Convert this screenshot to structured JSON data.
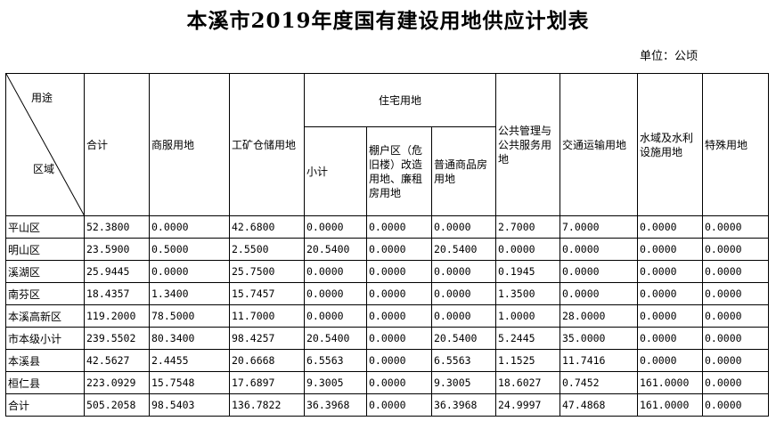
{
  "title": "本溪市2019年度国有建设用地供应计划表",
  "unit_label": "单位：公顷",
  "header": {
    "use_label": "用途",
    "region_label": "区域",
    "total": "合计",
    "commercial": "商服用地",
    "industrial": "工矿仓储用地",
    "residential": "住宅用地",
    "res_subtotal": "小计",
    "res_shanty": "棚户区（危旧楼）改造用地、廉租房用地",
    "res_ordinary": "普通商品房用地",
    "public": "公共管理与公共服务用地",
    "transport": "交通运输用地",
    "water": "水域及水利设施用地",
    "special": "特殊用地"
  },
  "rows": [
    {
      "region": "平山区",
      "v": [
        "52.3800",
        "0.0000",
        "42.6800",
        "0.0000",
        "0.0000",
        "0.0000",
        "2.7000",
        "7.0000",
        "0.0000",
        "0.0000"
      ]
    },
    {
      "region": "明山区",
      "v": [
        "23.5900",
        "0.5000",
        "2.5500",
        "20.5400",
        "0.0000",
        "20.5400",
        "0.0000",
        "0.0000",
        "0.0000",
        "0.0000"
      ]
    },
    {
      "region": "溪湖区",
      "v": [
        "25.9445",
        "0.0000",
        "25.7500",
        "0.0000",
        "0.0000",
        "0.0000",
        "0.1945",
        "0.0000",
        "0.0000",
        "0.0000"
      ]
    },
    {
      "region": "南芬区",
      "v": [
        "18.4357",
        "1.3400",
        "15.7457",
        "0.0000",
        "0.0000",
        "0.0000",
        "1.3500",
        "0.0000",
        "0.0000",
        "0.0000"
      ]
    },
    {
      "region": "本溪高新区",
      "v": [
        "119.2000",
        "78.5000",
        "11.7000",
        "0.0000",
        "0.0000",
        "0.0000",
        "1.0000",
        "28.0000",
        "0.0000",
        "0.0000"
      ]
    },
    {
      "region": "市本级小计",
      "v": [
        "239.5502",
        "80.3400",
        "98.4257",
        "20.5400",
        "0.0000",
        "20.5400",
        "5.2445",
        "35.0000",
        "0.0000",
        "0.0000"
      ]
    },
    {
      "region": "本溪县",
      "v": [
        "42.5627",
        "2.4455",
        "20.6668",
        "6.5563",
        "0.0000",
        "6.5563",
        "1.1525",
        "11.7416",
        "0.0000",
        "0.0000"
      ]
    },
    {
      "region": "桓仁县",
      "v": [
        "223.0929",
        "15.7548",
        "17.6897",
        "9.3005",
        "0.0000",
        "9.3005",
        "18.6027",
        "0.7452",
        "161.0000",
        "0.0000"
      ]
    },
    {
      "region": "合计",
      "v": [
        "505.2058",
        "98.5403",
        "136.7822",
        "36.3968",
        "0.0000",
        "36.3968",
        "24.9997",
        "47.4868",
        "161.0000",
        "0.0000"
      ]
    }
  ]
}
